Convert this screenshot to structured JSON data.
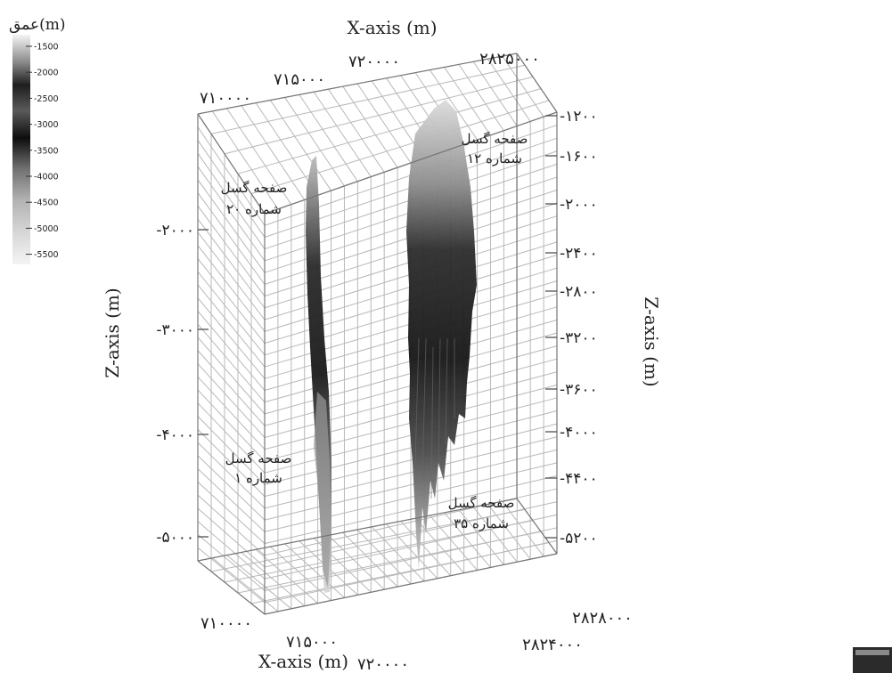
{
  "legend": {
    "title": "عمق(m)",
    "ticks": [
      "-1500",
      "-2000",
      "-2500",
      "-3000",
      "-3500",
      "-4000",
      "-4500",
      "-5000",
      "-5500"
    ]
  },
  "axes": {
    "x_top_title": "X-axis (m)",
    "x_bottom_title": "X-axis (m)",
    "z_left_title": "Z-axis (m)",
    "z_right_title": "Z-axis (m)",
    "top_x_ticks": [
      "۷۱۰۰۰۰",
      "۷۱۵۰۰۰",
      "۷۲۰۰۰۰"
    ],
    "top_y_tick": "۲۸۲۵۰۰۰",
    "bottom_x_ticks": [
      "۷۱۰۰۰۰",
      "۷۱۵۰۰۰",
      "۷۲۰۰۰۰"
    ],
    "bottom_y_ticks": [
      "۲۸۲۸۰۰۰",
      "۲۸۲۴۰۰۰"
    ],
    "left_z_ticks": [
      "-۲۰۰۰",
      "-۳۰۰۰",
      "-۴۰۰۰",
      "-۵۰۰۰"
    ],
    "right_z_ticks": [
      "-۱۲۰۰",
      "-۱۶۰۰",
      "-۲۰۰۰",
      "-۲۴۰۰",
      "-۲۸۰۰",
      "-۳۲۰۰",
      "-۳۶۰۰",
      "-۴۰۰۰",
      "-۴۴۰۰",
      "-۵۲۰۰"
    ]
  },
  "faults": [
    {
      "line1": "صفحه گسل",
      "line2": "شماره ۱۲"
    },
    {
      "line1": "صفحه گسل",
      "line2": "شماره ۲۰"
    },
    {
      "line1": "صفحه گسل",
      "line2": "شماره ۱"
    },
    {
      "line1": "صفحه گسل",
      "line2": "شماره ۳۵"
    }
  ]
}
